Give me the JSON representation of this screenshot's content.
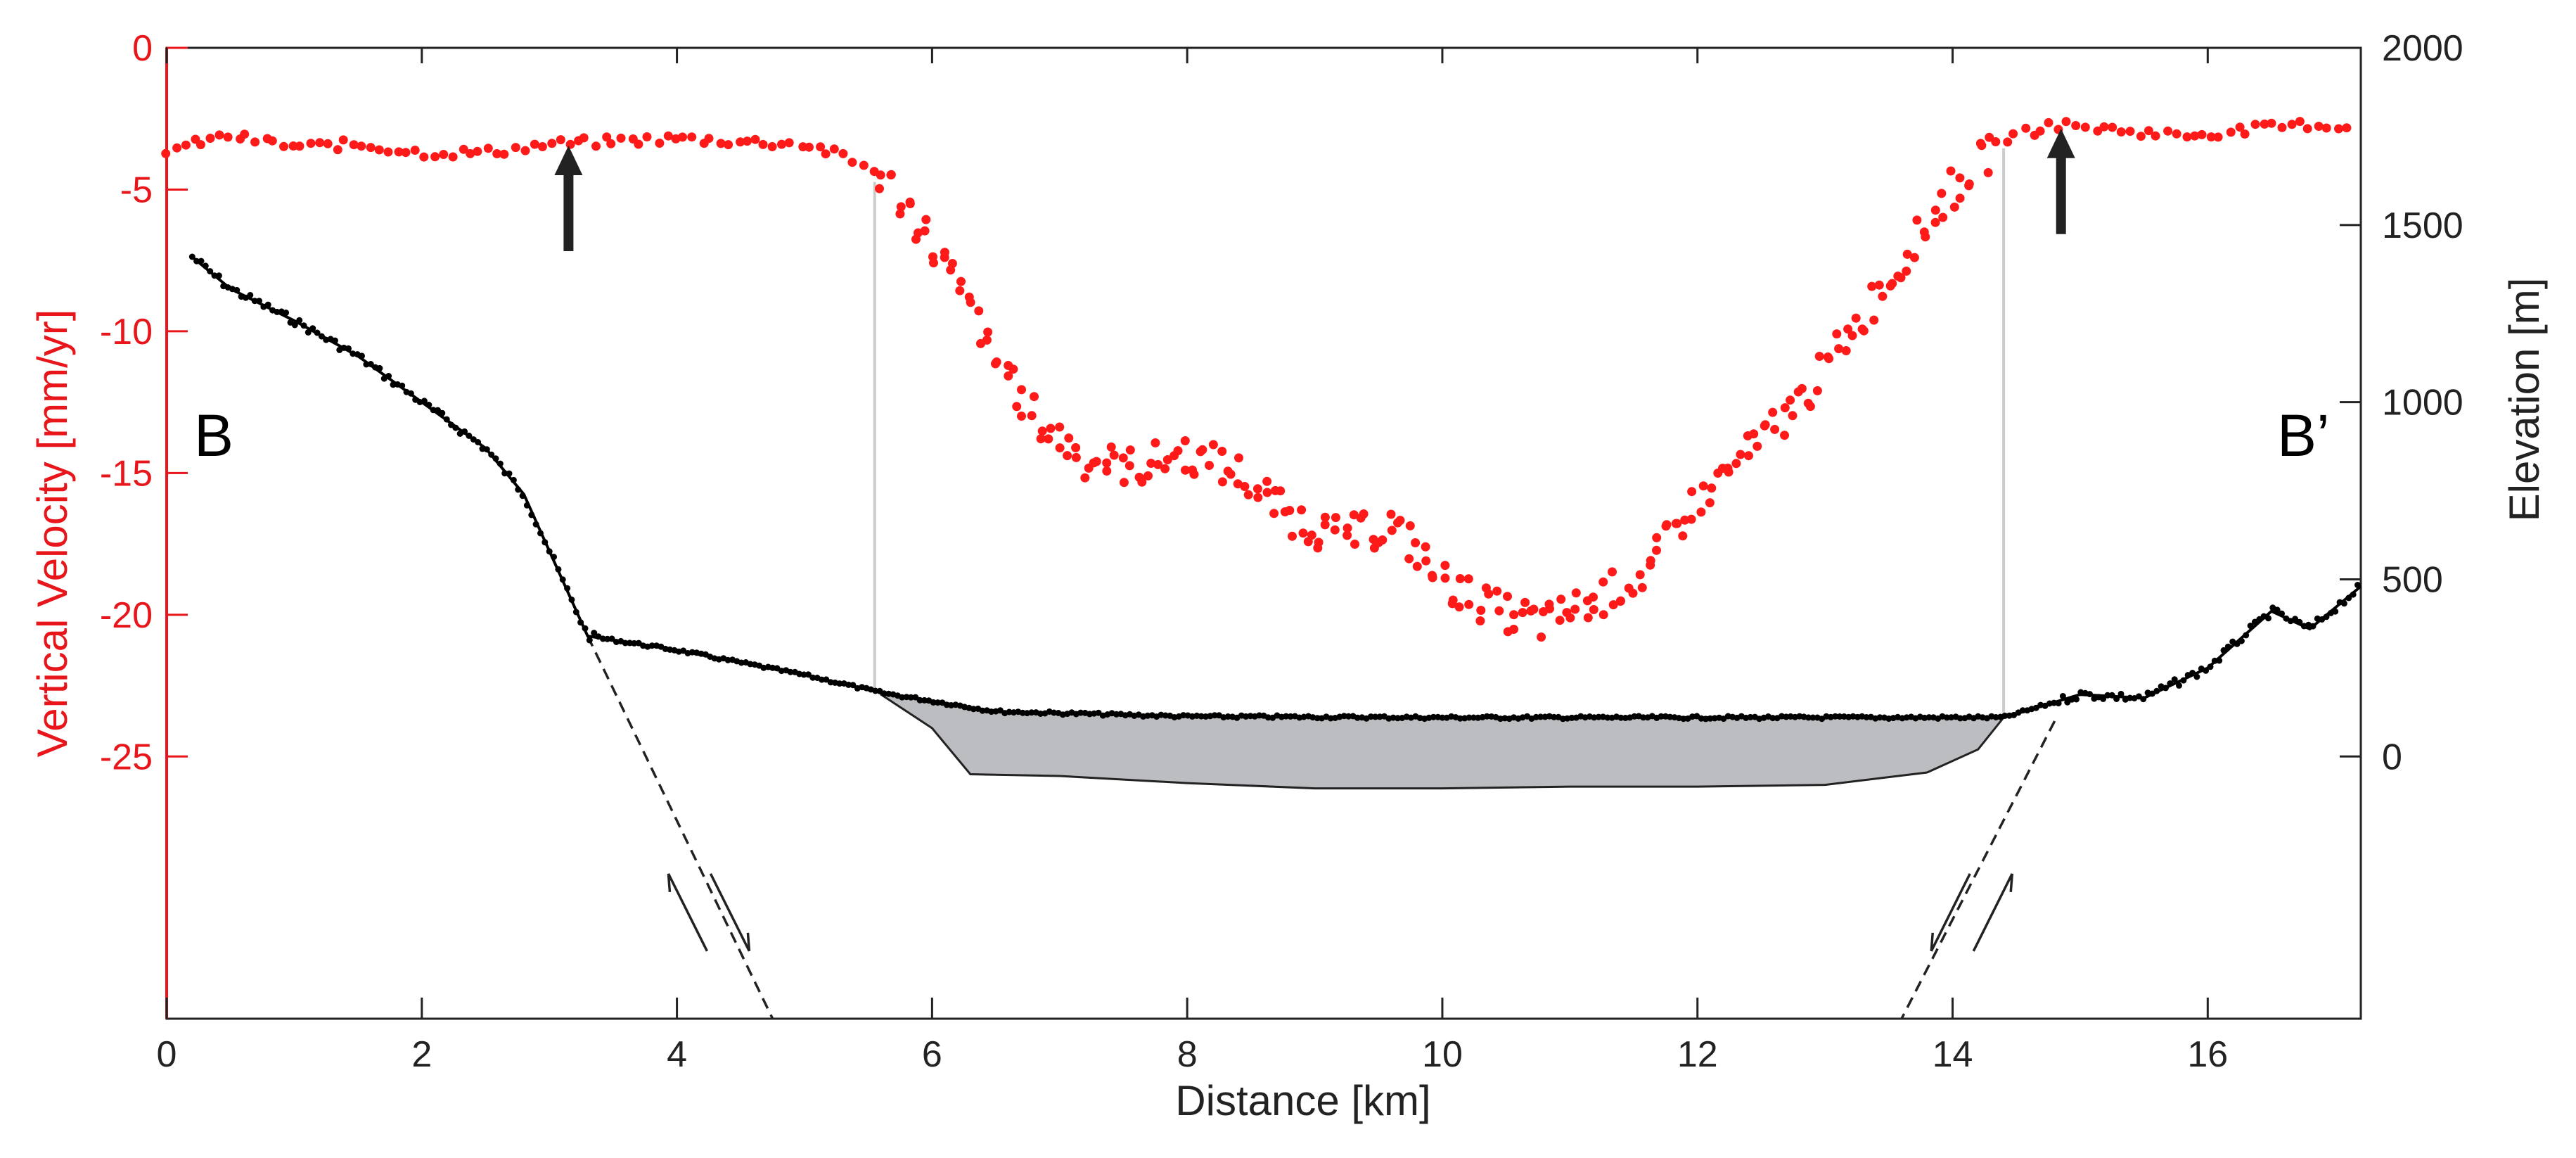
{
  "chart_data": {
    "type": "scatter",
    "x_axis": {
      "label": "Distance [km]",
      "range": [
        0,
        17.2
      ],
      "ticks": [
        0,
        2,
        4,
        6,
        8,
        10,
        12,
        14,
        16
      ],
      "tick_labels": [
        "0",
        "2",
        "4",
        "6",
        "8",
        "10",
        "12",
        "14",
        "16"
      ]
    },
    "y_axis_left": {
      "label": "Vertical Velocity [mm/yr]",
      "color": "#e8161b",
      "range": [
        -34.25,
        0
      ],
      "ticks": [
        0,
        -5,
        -10,
        -15,
        -20,
        -25
      ],
      "tick_labels": [
        "0",
        "-5",
        "-10",
        "-15",
        "-20",
        "-25"
      ]
    },
    "y_axis_right": {
      "label": "Elevation [m]",
      "color": "#222222",
      "range": [
        -740,
        2000
      ],
      "ticks": [
        2000,
        1500,
        1000,
        500,
        0
      ],
      "tick_labels": [
        "2000",
        "1500",
        "1000",
        "500",
        "0"
      ]
    },
    "profile_labels": {
      "start": "B",
      "end": "B’"
    },
    "series": [
      {
        "name": "Vertical Velocity",
        "axis": "left",
        "marker": "dot",
        "color": "#ff1a1a",
        "points": [
          [
            0,
            -3.6
          ],
          [
            0.5,
            -3.1
          ],
          [
            1,
            -3.5
          ],
          [
            1.5,
            -3.4
          ],
          [
            2,
            -3.7
          ],
          [
            2.5,
            -3.7
          ],
          [
            3,
            -3.4
          ],
          [
            3.5,
            -3.3
          ],
          [
            4,
            -3.2
          ],
          [
            4.5,
            -3.3
          ],
          [
            5,
            -3.4
          ],
          [
            5.3,
            -3.8
          ],
          [
            5.6,
            -4.5
          ],
          [
            5.9,
            -6.2
          ],
          [
            6.2,
            -8.4
          ],
          [
            6.5,
            -11
          ],
          [
            6.8,
            -13
          ],
          [
            7.2,
            -14.5
          ],
          [
            7.6,
            -14.8
          ],
          [
            8,
            -14.3
          ],
          [
            8.4,
            -15
          ],
          [
            8.8,
            -16.5
          ],
          [
            9.2,
            -17.3
          ],
          [
            9.6,
            -16.8
          ],
          [
            10,
            -18.8
          ],
          [
            10.4,
            -19.8
          ],
          [
            10.8,
            -20.3
          ],
          [
            11.2,
            -19.5
          ],
          [
            11.6,
            -18.5
          ],
          [
            12,
            -16
          ],
          [
            12.4,
            -14.3
          ],
          [
            12.8,
            -12.5
          ],
          [
            13.2,
            -10
          ],
          [
            13.6,
            -7.5
          ],
          [
            14,
            -5
          ],
          [
            14.4,
            -3.2
          ],
          [
            14.8,
            -2.7
          ],
          [
            15.3,
            -2.9
          ],
          [
            15.8,
            -3.1
          ],
          [
            16.3,
            -2.9
          ],
          [
            16.8,
            -2.7
          ],
          [
            17.1,
            -2.8
          ]
        ]
      },
      {
        "name": "Elevation",
        "axis": "right",
        "marker": "small-dot",
        "color": "#000000",
        "points": [
          [
            0.2,
            1410
          ],
          [
            0.5,
            1320
          ],
          [
            1,
            1230
          ],
          [
            1.5,
            1130
          ],
          [
            2,
            1000
          ],
          [
            2.5,
            870
          ],
          [
            2.8,
            740
          ],
          [
            3,
            580
          ],
          [
            3.3,
            340
          ],
          [
            4,
            300
          ],
          [
            5,
            230
          ],
          [
            5.6,
            180
          ],
          [
            6.5,
            127
          ],
          [
            8,
            113
          ],
          [
            10,
            110
          ],
          [
            12,
            110
          ],
          [
            14,
            110
          ],
          [
            14.4,
            110
          ],
          [
            15,
            175
          ],
          [
            15.5,
            165
          ],
          [
            16,
            250
          ],
          [
            16.5,
            410
          ],
          [
            16.8,
            360
          ],
          [
            17.2,
            480
          ]
        ]
      },
      {
        "name": "Basin fill",
        "axis": "right",
        "marker": "filled-area",
        "color": "#bbbdc0",
        "points": [
          [
            5.6,
            175
          ],
          [
            6,
            80
          ],
          [
            6.3,
            -50
          ],
          [
            7,
            -55
          ],
          [
            8,
            -75
          ],
          [
            9,
            -90
          ],
          [
            10,
            -90
          ],
          [
            11,
            -85
          ],
          [
            12,
            -85
          ],
          [
            13,
            -80
          ],
          [
            13.8,
            -45
          ],
          [
            14.2,
            20
          ],
          [
            14.4,
            110
          ]
        ]
      },
      {
        "name": "Normal fault (west)",
        "axis": "right",
        "marker": "dashed-line",
        "color": "#222222",
        "points": [
          [
            3.3,
            340
          ],
          [
            4.75,
            -740
          ]
        ]
      },
      {
        "name": "Normal fault (east)",
        "axis": "right",
        "marker": "dashed-line",
        "color": "#222222",
        "points": [
          [
            14.8,
            100
          ],
          [
            13.6,
            -740
          ]
        ]
      }
    ],
    "annotations": [
      {
        "type": "arrow-up",
        "x": 3.15,
        "y_left": -3.3,
        "color": "#222222"
      },
      {
        "type": "arrow-up",
        "x": 14.85,
        "y_left": -2.7,
        "color": "#222222"
      },
      {
        "type": "vertical-line",
        "x": 5.55,
        "color": "#cccccc"
      },
      {
        "type": "vertical-line",
        "x": 14.4,
        "color": "#cccccc"
      },
      {
        "type": "fault-slip-arrows",
        "x": 4.25,
        "y_right": -440
      },
      {
        "type": "fault-slip-arrows",
        "x": 14.15,
        "y_right": -440
      }
    ]
  }
}
